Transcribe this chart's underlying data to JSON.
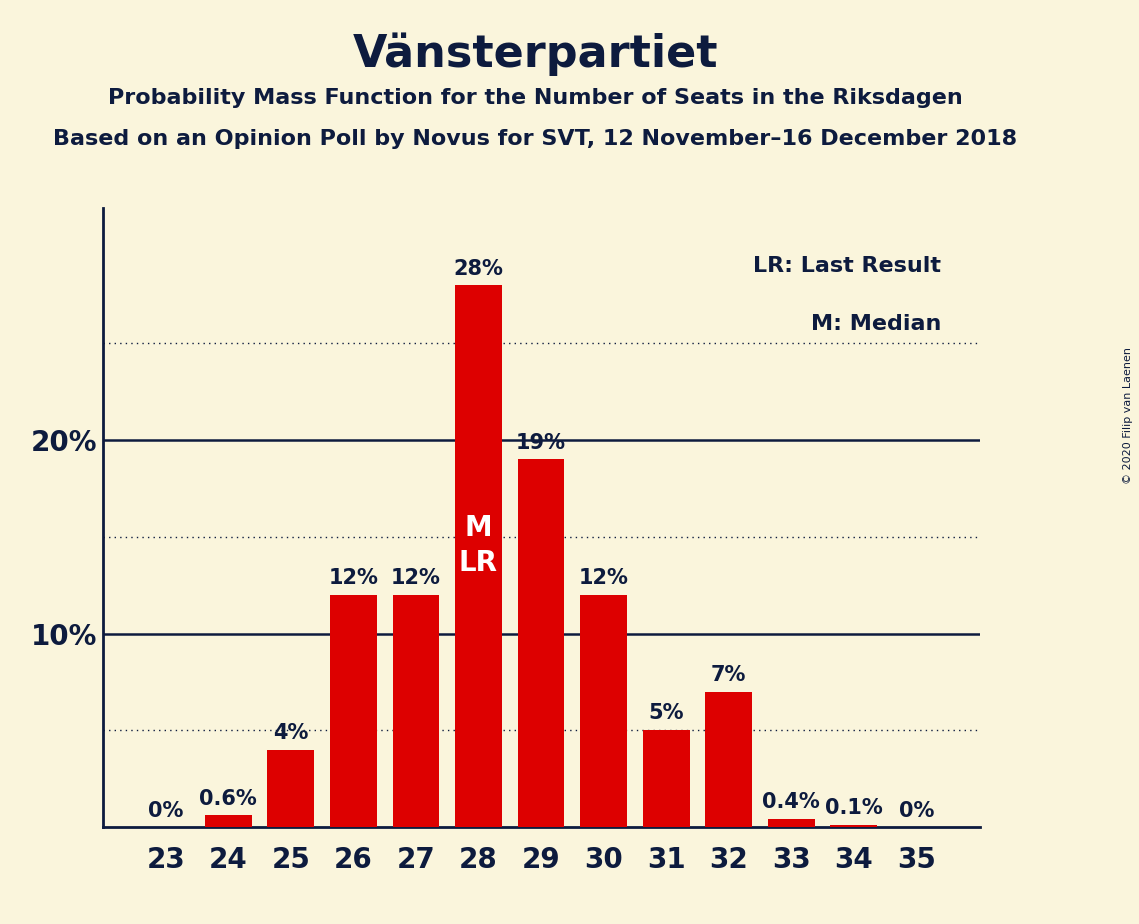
{
  "title": "Vänsterpartiet",
  "subtitle1": "Probability Mass Function for the Number of Seats in the Riksdagen",
  "subtitle2": "Based on an Opinion Poll by Novus for SVT, 12 November–16 December 2018",
  "copyright": "© 2020 Filip van Laenen",
  "categories": [
    23,
    24,
    25,
    26,
    27,
    28,
    29,
    30,
    31,
    32,
    33,
    34,
    35
  ],
  "values": [
    0.0,
    0.6,
    4.0,
    12.0,
    12.0,
    28.0,
    19.0,
    12.0,
    5.0,
    7.0,
    0.4,
    0.1,
    0.0
  ],
  "labels": [
    "0%",
    "0.6%",
    "4%",
    "12%",
    "12%",
    "28%",
    "19%",
    "12%",
    "5%",
    "7%",
    "0.4%",
    "0.1%",
    "0%"
  ],
  "bar_color": "#dd0000",
  "background_color": "#faf5dc",
  "text_color": "#0d1b3e",
  "title_fontsize": 32,
  "subtitle_fontsize": 16,
  "label_fontsize": 15,
  "tick_fontsize": 20,
  "ylim": [
    0,
    32
  ],
  "median_seat": 28,
  "last_result_seat": 28,
  "legend_text": [
    "LR: Last Result",
    "M: Median"
  ],
  "dotted_lines": [
    5,
    15,
    25
  ],
  "solid_lines": [
    10,
    20
  ]
}
